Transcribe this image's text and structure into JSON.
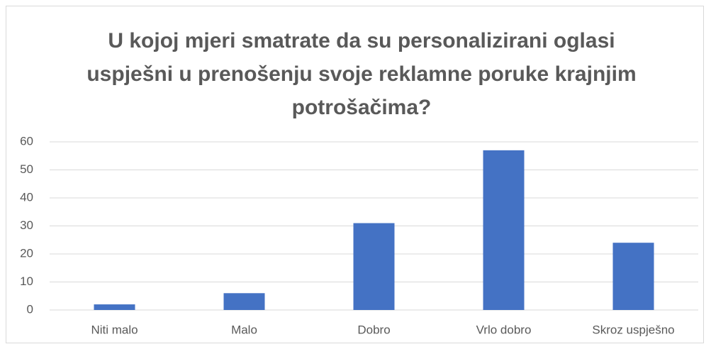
{
  "chart_data": {
    "type": "bar",
    "title": "U kojoj mjeri smatrate da su personalizirani oglasi uspješni u prenošenju svoje reklamne poruke krajnjim potrošačima?",
    "categories": [
      "Niti malo",
      "Malo",
      "Dobro",
      "Vrlo dobro",
      "Skroz uspješno"
    ],
    "values": [
      2,
      6,
      31,
      57,
      24
    ],
    "color": "#4472c4",
    "ylim": [
      0,
      60
    ],
    "yticks": [
      0,
      10,
      20,
      30,
      40,
      50,
      60
    ],
    "grid": true
  }
}
